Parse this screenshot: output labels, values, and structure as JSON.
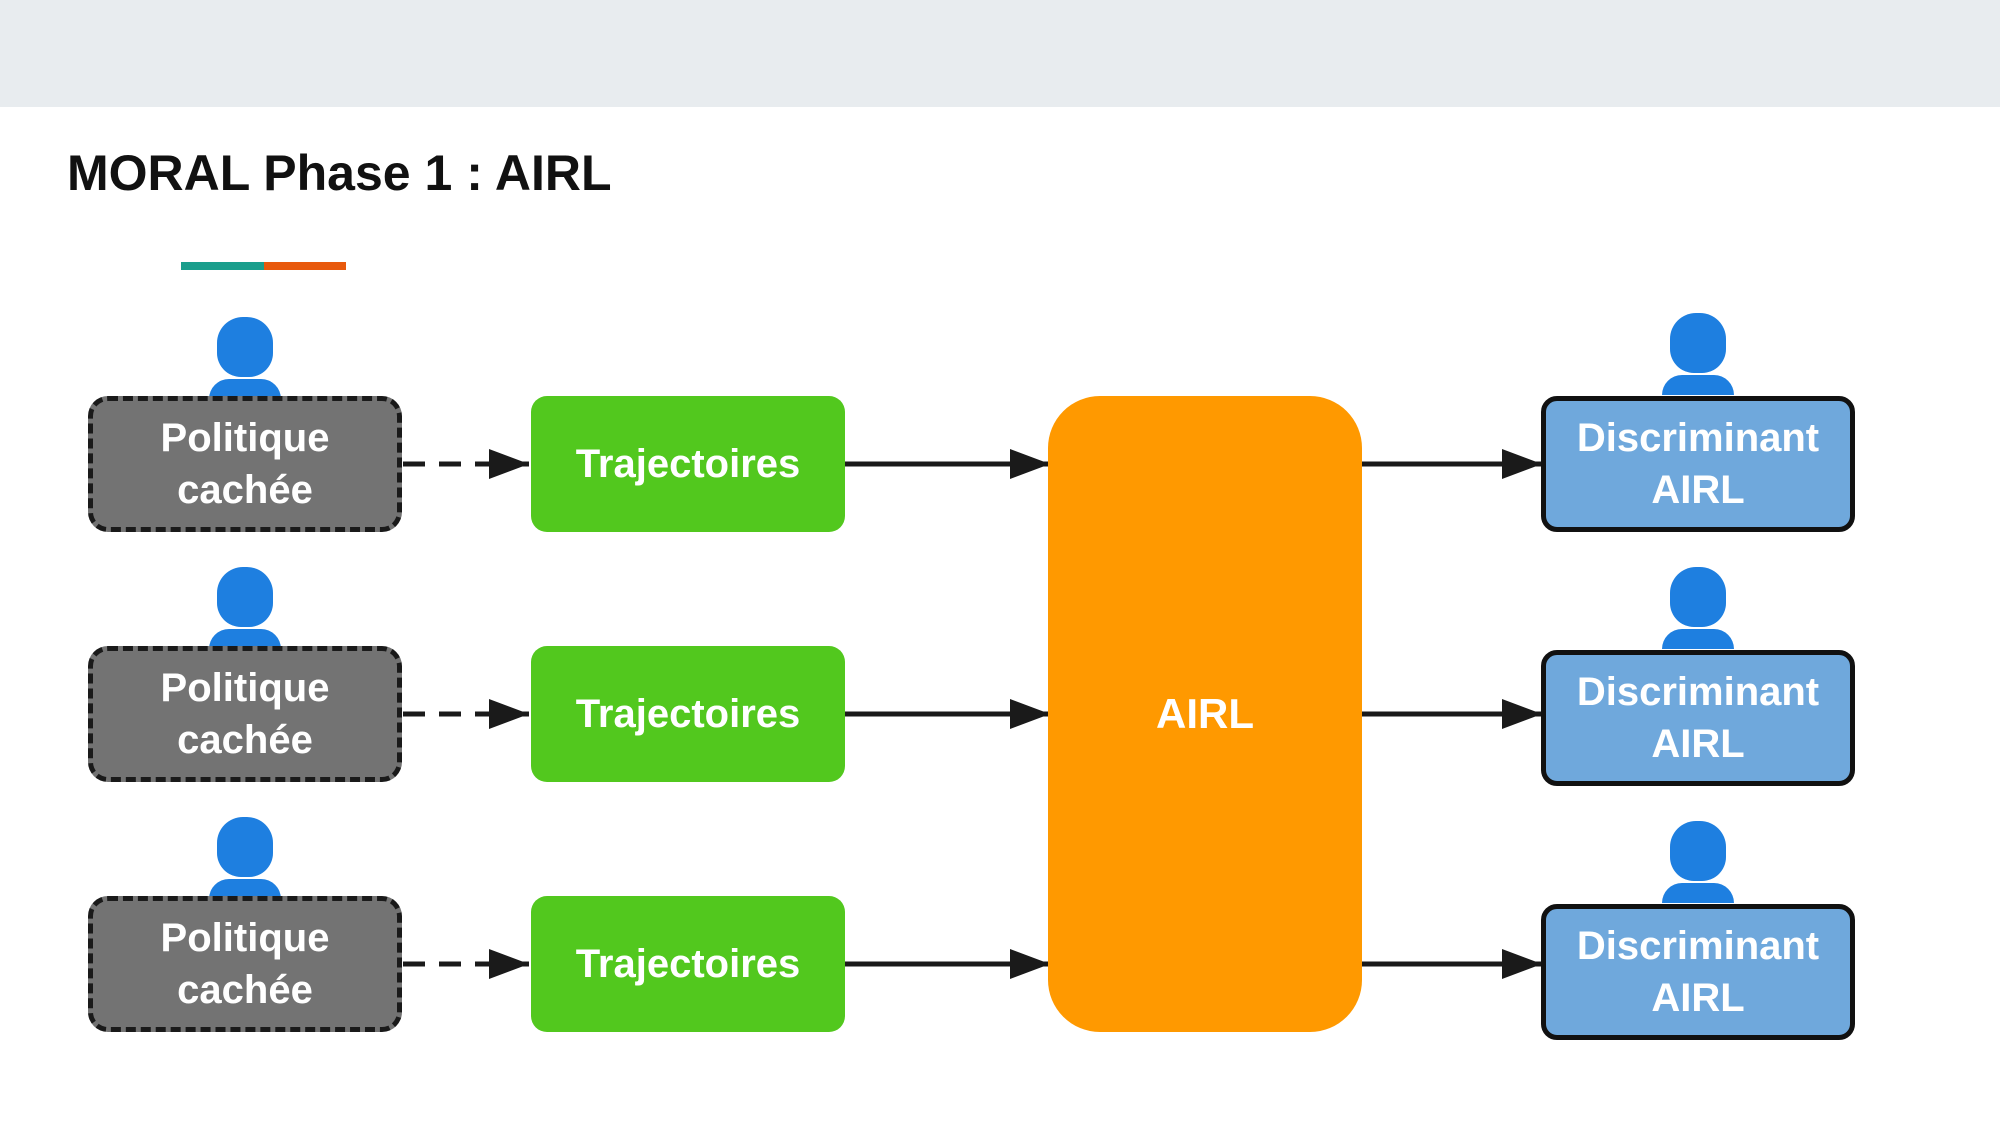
{
  "slide": {
    "title": "MORAL Phase 1 : AIRL"
  },
  "colors": {
    "accent_left": "#1a9e8c",
    "accent_right": "#e8590c",
    "policy_fill": "#737373",
    "trajectory_fill": "#52c81e",
    "airl_fill": "#ff9900",
    "discriminator_fill": "#6fa8dc",
    "person_icon": "#1e7fe0",
    "arrow": "#1a1a1a"
  },
  "diagram": {
    "policies": [
      {
        "label": "Politique\ncachée",
        "icon": "person-icon"
      },
      {
        "label": "Politique\ncachée",
        "icon": "person-icon"
      },
      {
        "label": "Politique\ncachée",
        "icon": "person-icon"
      }
    ],
    "trajectories": [
      {
        "label": "Trajectoires"
      },
      {
        "label": "Trajectoires"
      },
      {
        "label": "Trajectoires"
      }
    ],
    "airl": {
      "label": "AIRL"
    },
    "discriminators": [
      {
        "label": "Discriminant\nAIRL",
        "icon": "person-icon"
      },
      {
        "label": "Discriminant\nAIRL",
        "icon": "person-icon"
      },
      {
        "label": "Discriminant\nAIRL",
        "icon": "person-icon"
      }
    ],
    "edges": [
      {
        "from": "policy-1",
        "to": "trajectory-1",
        "style": "dashed"
      },
      {
        "from": "policy-2",
        "to": "trajectory-2",
        "style": "dashed"
      },
      {
        "from": "policy-3",
        "to": "trajectory-3",
        "style": "dashed"
      },
      {
        "from": "trajectory-1",
        "to": "airl",
        "style": "solid"
      },
      {
        "from": "trajectory-2",
        "to": "airl",
        "style": "solid"
      },
      {
        "from": "trajectory-3",
        "to": "airl",
        "style": "solid"
      },
      {
        "from": "airl",
        "to": "discriminator-1",
        "style": "solid"
      },
      {
        "from": "airl",
        "to": "discriminator-2",
        "style": "solid"
      },
      {
        "from": "airl",
        "to": "discriminator-3",
        "style": "solid"
      }
    ]
  }
}
